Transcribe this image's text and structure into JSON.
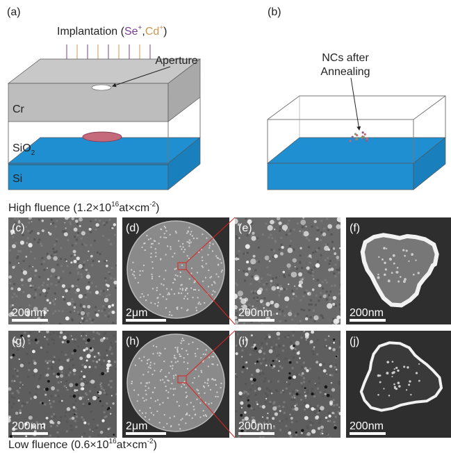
{
  "panel_a": {
    "label": "(a)",
    "implantation": {
      "text": "Implantation (",
      "ion1": "Se",
      "charge1": "+",
      "sep": ",",
      "ion2": "Cd",
      "charge2": "+",
      "close": ")"
    },
    "aperture": "Aperture",
    "cr": "Cr",
    "sio2": {
      "text": "SiO",
      "sub": "2"
    },
    "si": "Si"
  },
  "panel_b": {
    "label": "(b)",
    "annotation": [
      "NCs after",
      "Annealing"
    ]
  },
  "high_fluence": {
    "text": "High fluence (1.2×10",
    "exp": "16",
    "unit": "at×cm",
    "unit_exp": "-2",
    "close": ")"
  },
  "low_fluence": {
    "text": "Low fluence (0.6×10",
    "exp": "16",
    "unit": "at×cm",
    "unit_exp": "-2",
    "close": ")"
  },
  "images": [
    {
      "label": "(c)",
      "scale_bar": "200nm"
    },
    {
      "label": "(d)",
      "scale_bar": "2μm"
    },
    {
      "label": "(e)",
      "scale_bar": "200nm"
    },
    {
      "label": "(f)",
      "scale_bar": "200nm"
    },
    {
      "label": "(g)",
      "scale_bar": "200nm"
    },
    {
      "label": "(h)",
      "scale_bar": "2μm"
    },
    {
      "label": "(i)",
      "scale_bar": "200nm"
    },
    {
      "label": "(j)",
      "scale_bar": "200nm"
    }
  ]
}
